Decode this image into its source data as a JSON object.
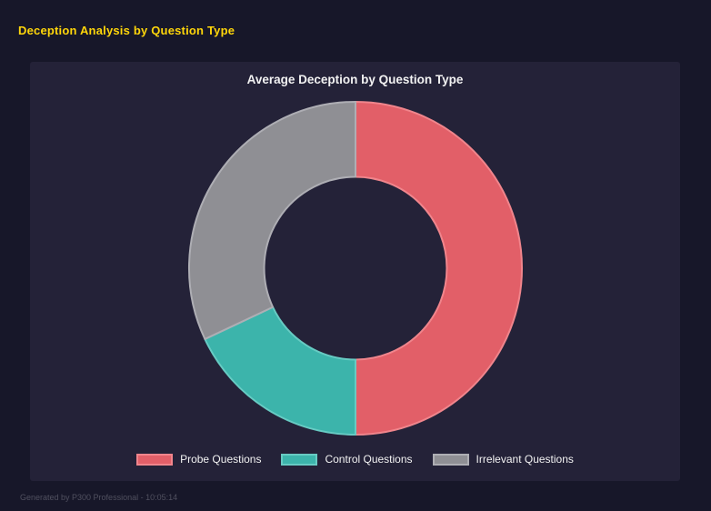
{
  "header": {
    "title": "Deception Analysis by Question Type"
  },
  "footer": {
    "text": "Generated by P300 Professional - 10:05:14"
  },
  "theme": {
    "page_bg": "#171729",
    "panel_bg": "#242238",
    "header_color": "#ffd60a",
    "text_color": "#f2f2f2",
    "footer_color": "#50505f"
  },
  "chart_data": {
    "type": "pie",
    "subtype": "doughnut",
    "title": "Average Deception by Question Type",
    "categories": [
      "Probe Questions",
      "Control Questions",
      "Irrelevant Questions"
    ],
    "values": [
      50,
      18,
      32
    ],
    "unit": "percent",
    "colors": [
      "#e25f68",
      "#3cb4ab",
      "#8f8f94"
    ],
    "border_colors": [
      "#f0858c",
      "#67cbc3",
      "#aeaeb4"
    ],
    "start_angle_deg": 0,
    "direction": "clockwise",
    "cutout_percent": 55,
    "legend_position": "bottom"
  }
}
